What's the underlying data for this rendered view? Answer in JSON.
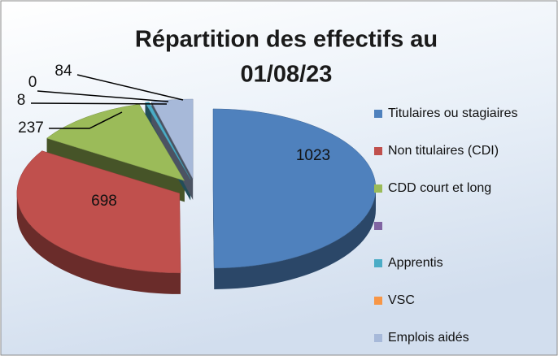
{
  "chart_data": {
    "type": "pie3d",
    "title": "Répartition des effectifs au 01/08/23",
    "categories": [
      "Titulaires ou stagiaires",
      "Non titulaires (CDI)",
      "CDD court et long",
      null,
      "Apprentis",
      "VSC",
      "Emplois aidés"
    ],
    "values": [
      1023,
      698,
      237,
      null,
      8,
      0,
      84
    ],
    "colors": [
      "#4f81bd",
      "#c0504d",
      "#9bbb59",
      "#8064a2",
      "#4bacc6",
      "#f79646",
      "#a7b9d9"
    ]
  }
}
